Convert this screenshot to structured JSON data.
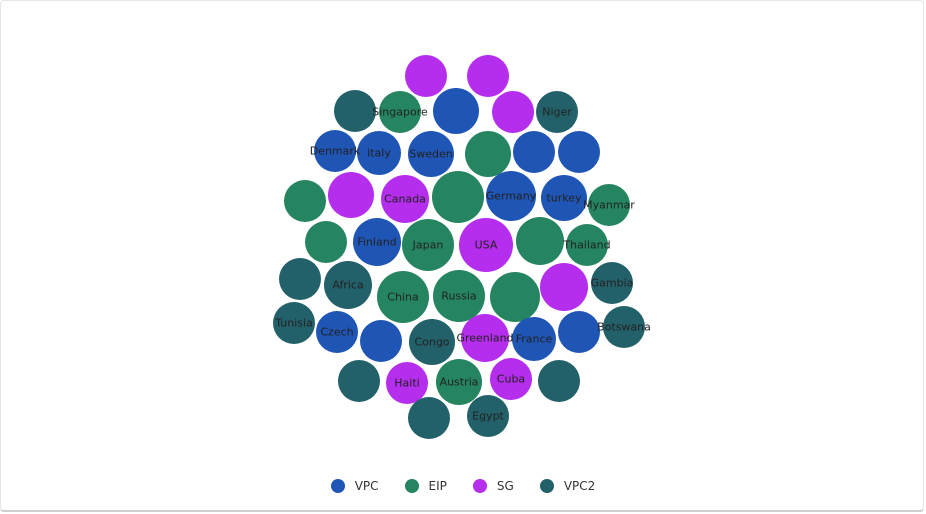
{
  "chart_data": {
    "type": "bubble-cloud",
    "series": [
      {
        "name": "VPC",
        "color": "#1f55b5"
      },
      {
        "name": "EIP",
        "color": "#248560"
      },
      {
        "name": "SG",
        "color": "#b52ded"
      },
      {
        "name": "VPC2",
        "color": "#22606a"
      }
    ],
    "nodes": [
      {
        "label": "",
        "series": "SG"
      },
      {
        "label": "",
        "series": "SG"
      },
      {
        "label": "",
        "series": "VPC2"
      },
      {
        "label": "Singapore",
        "series": "EIP"
      },
      {
        "label": "",
        "series": "VPC"
      },
      {
        "label": "",
        "series": "SG"
      },
      {
        "label": "Niger",
        "series": "VPC2"
      },
      {
        "label": "Denmark",
        "series": "VPC"
      },
      {
        "label": "italy",
        "series": "VPC"
      },
      {
        "label": "Sweden",
        "series": "VPC"
      },
      {
        "label": "",
        "series": "EIP"
      },
      {
        "label": "",
        "series": "VPC"
      },
      {
        "label": "",
        "series": "VPC"
      },
      {
        "label": "",
        "series": "EIP"
      },
      {
        "label": "",
        "series": "SG"
      },
      {
        "label": "Canada",
        "series": "SG"
      },
      {
        "label": "",
        "series": "EIP"
      },
      {
        "label": "Germany",
        "series": "VPC"
      },
      {
        "label": "turkey",
        "series": "VPC"
      },
      {
        "label": "Myanmar",
        "series": "EIP"
      },
      {
        "label": "",
        "series": "EIP"
      },
      {
        "label": "Finland",
        "series": "VPC"
      },
      {
        "label": "Japan",
        "series": "EIP"
      },
      {
        "label": "USA",
        "series": "SG"
      },
      {
        "label": "",
        "series": "EIP"
      },
      {
        "label": "Thailand",
        "series": "EIP"
      },
      {
        "label": "",
        "series": "VPC2"
      },
      {
        "label": "Africa",
        "series": "VPC2"
      },
      {
        "label": "China",
        "series": "EIP"
      },
      {
        "label": "Russia",
        "series": "EIP"
      },
      {
        "label": "",
        "series": "EIP"
      },
      {
        "label": "",
        "series": "SG"
      },
      {
        "label": "Gambia",
        "series": "VPC2"
      },
      {
        "label": "Tunisia",
        "series": "VPC2"
      },
      {
        "label": "Czech",
        "series": "VPC"
      },
      {
        "label": "",
        "series": "VPC"
      },
      {
        "label": "Congo",
        "series": "VPC2"
      },
      {
        "label": "Greenland",
        "series": "SG"
      },
      {
        "label": "France",
        "series": "VPC"
      },
      {
        "label": "",
        "series": "VPC"
      },
      {
        "label": "Botswana",
        "series": "VPC2"
      },
      {
        "label": "",
        "series": "VPC2"
      },
      {
        "label": "Haiti",
        "series": "SG"
      },
      {
        "label": "Austria",
        "series": "EIP"
      },
      {
        "label": "Cuba",
        "series": "SG"
      },
      {
        "label": "",
        "series": "VPC2"
      },
      {
        "label": "",
        "series": "VPC2"
      },
      {
        "label": "Egypt",
        "series": "VPC2"
      }
    ]
  }
}
